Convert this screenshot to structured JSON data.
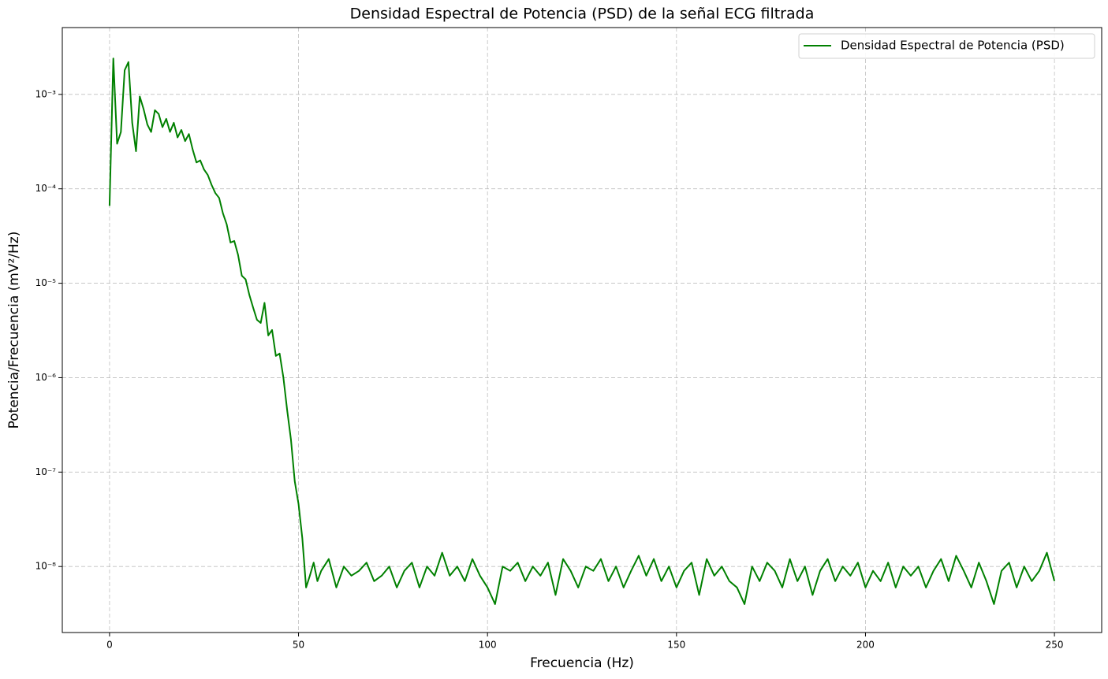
{
  "chart_data": {
    "type": "line",
    "title": "Densidad Espectral de Potencia (PSD) de la señal ECG filtrada",
    "x_label": "Frecuencia (Hz)",
    "y_label": "Potencia/Frecuencia (mV²/Hz)",
    "yscale": "log",
    "grid": true,
    "legend": "upper right",
    "xlim": [
      -12.5,
      262.5
    ],
    "ylim": [
      2e-09,
      0.0051
    ],
    "xticks": [
      0,
      50,
      100,
      150,
      200,
      250
    ],
    "yticks": [
      {
        "value": 1e-08,
        "label": "10⁻⁸"
      },
      {
        "value": 1e-07,
        "label": "10⁻⁷"
      },
      {
        "value": 1e-06,
        "label": "10⁻⁶"
      },
      {
        "value": 1e-05,
        "label": "10⁻⁵"
      },
      {
        "value": 0.0001,
        "label": "10⁻⁴"
      },
      {
        "value": 0.001,
        "label": "10⁻³"
      }
    ],
    "x": [
      0,
      1,
      2,
      3,
      4,
      5,
      6,
      7,
      8,
      9,
      10,
      11,
      12,
      13,
      14,
      15,
      16,
      17,
      18,
      19,
      20,
      21,
      22,
      23,
      24,
      25,
      26,
      27,
      28,
      29,
      30,
      31,
      32,
      33,
      34,
      35,
      36,
      37,
      38,
      39,
      40,
      41,
      42,
      43,
      44,
      45,
      46,
      47,
      48,
      49,
      50,
      51,
      52,
      53,
      54,
      55,
      56,
      58,
      60,
      62,
      64,
      66,
      68,
      70,
      72,
      74,
      76,
      78,
      80,
      82,
      84,
      86,
      88,
      90,
      92,
      94,
      96,
      98,
      100,
      102,
      104,
      106,
      108,
      110,
      112,
      114,
      116,
      118,
      120,
      122,
      124,
      126,
      128,
      130,
      132,
      134,
      136,
      138,
      140,
      142,
      144,
      146,
      148,
      150,
      152,
      154,
      156,
      158,
      160,
      162,
      164,
      166,
      168,
      170,
      172,
      174,
      176,
      178,
      180,
      182,
      184,
      186,
      188,
      190,
      192,
      194,
      196,
      198,
      200,
      202,
      204,
      206,
      208,
      210,
      212,
      214,
      216,
      218,
      220,
      222,
      224,
      226,
      228,
      230,
      232,
      234,
      236,
      238,
      240,
      242,
      244,
      246,
      248,
      250
    ],
    "series": [
      {
        "name": "Densidad Espectral de Potencia (PSD)",
        "color": "#008000",
        "values": [
          6.6e-05,
          0.0024,
          0.0003,
          0.0004,
          0.0018,
          0.0022,
          0.0005,
          0.00025,
          0.00095,
          0.0007,
          0.00048,
          0.0004,
          0.00068,
          0.00062,
          0.00045,
          0.00055,
          0.0004,
          0.0005,
          0.00035,
          0.00042,
          0.00032,
          0.00038,
          0.00026,
          0.00019,
          0.0002,
          0.00016,
          0.00014,
          0.00011,
          9e-05,
          8e-05,
          5.5e-05,
          4.2e-05,
          2.7e-05,
          2.8e-05,
          2e-05,
          1.2e-05,
          1.1e-05,
          7.5e-06,
          5.5e-06,
          4.1e-06,
          3.8e-06,
          6.2e-06,
          2.8e-06,
          3.2e-06,
          1.7e-06,
          1.8e-06,
          1e-06,
          4.5e-07,
          2.2e-07,
          8e-08,
          4.6e-08,
          2e-08,
          6e-09,
          8e-09,
          1.1e-08,
          7e-09,
          9e-09,
          1.2e-08,
          6e-09,
          1e-08,
          8e-09,
          9e-09,
          1.1e-08,
          7e-09,
          8e-09,
          1e-08,
          6e-09,
          9e-09,
          1.1e-08,
          6e-09,
          1e-08,
          8e-09,
          1.4e-08,
          8e-09,
          1e-08,
          7e-09,
          1.2e-08,
          8e-09,
          6e-09,
          4e-09,
          1e-08,
          9e-09,
          1.1e-08,
          7e-09,
          1e-08,
          8e-09,
          1.1e-08,
          5e-09,
          1.2e-08,
          9e-09,
          6e-09,
          1e-08,
          9e-09,
          1.2e-08,
          7e-09,
          1e-08,
          6e-09,
          9e-09,
          1.3e-08,
          8e-09,
          1.2e-08,
          7e-09,
          1e-08,
          6e-09,
          9e-09,
          1.1e-08,
          5e-09,
          1.2e-08,
          8e-09,
          1e-08,
          7e-09,
          6e-09,
          4e-09,
          1e-08,
          7e-09,
          1.1e-08,
          9e-09,
          6e-09,
          1.2e-08,
          7e-09,
          1e-08,
          5e-09,
          9e-09,
          1.2e-08,
          7e-09,
          1e-08,
          8e-09,
          1.1e-08,
          6e-09,
          9e-09,
          7e-09,
          1.1e-08,
          6e-09,
          1e-08,
          8e-09,
          1e-08,
          6e-09,
          9e-09,
          1.2e-08,
          7e-09,
          1.3e-08,
          9e-09,
          6e-09,
          1.1e-08,
          7e-09,
          4e-09,
          9e-09,
          1.1e-08,
          6e-09,
          1e-08,
          7e-09,
          9e-09,
          1.4e-08,
          7e-09
        ]
      }
    ]
  }
}
